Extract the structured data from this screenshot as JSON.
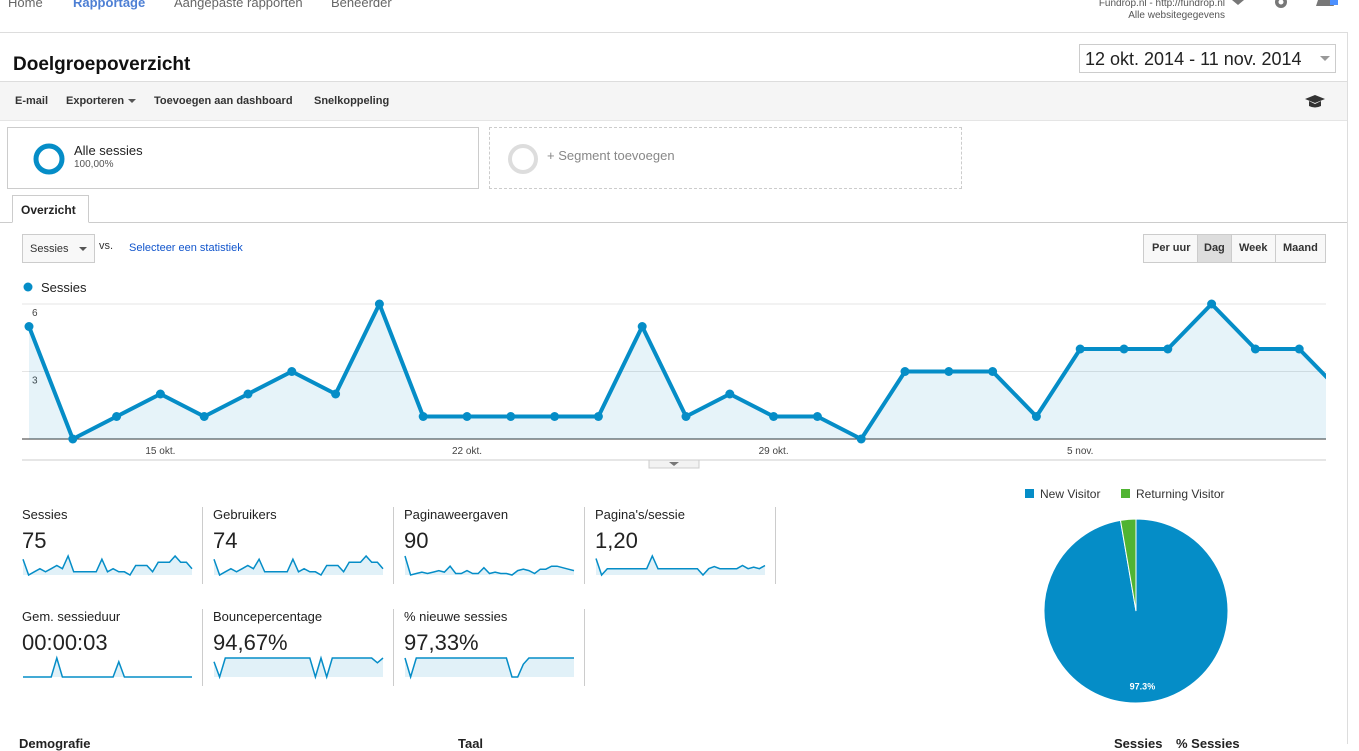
{
  "nav": {
    "tabs": [
      "Home",
      "Rapportage",
      "Aangepaste rapporten",
      "Beheerder"
    ],
    "account": "Fundrop.nl - http://fundrop.nl",
    "view": "Alle websitegegevens"
  },
  "header": {
    "title": "Doelgroepoverzicht",
    "date_range": "12 okt. 2014 - 11 nov. 2014"
  },
  "toolbar": [
    "E-mail",
    "Exporteren",
    "Toevoegen aan dashboard",
    "Snelkoppeling"
  ],
  "segments": {
    "active": {
      "name": "Alle sessies",
      "share": "100,00%"
    },
    "add": "+ Segment toevoegen"
  },
  "tab": "Overzicht",
  "controls": {
    "metric": "Sessies",
    "vs": "vs.",
    "compare": "Selecteer een statistiek",
    "periods": [
      "Per uur",
      "Dag",
      "Week",
      "Maand"
    ]
  },
  "chart_data": [
    {
      "type": "line",
      "categories": [
        null,
        null,
        null,
        "15 okt.",
        null,
        null,
        null,
        null,
        null,
        null,
        "22 okt.",
        null,
        null,
        null,
        null,
        null,
        null,
        "29 okt.",
        null,
        null,
        null,
        null,
        null,
        null,
        "5 nov.",
        null,
        null,
        null,
        null,
        null,
        null
      ],
      "series": [
        {
          "name": "Sessies",
          "color": "#058dc7",
          "values": [
            5,
            0,
            1,
            2,
            1,
            2,
            3,
            2,
            6,
            1,
            1,
            1,
            1,
            1,
            5,
            1,
            2,
            1,
            1,
            0,
            3,
            3,
            3,
            1,
            4,
            4,
            4,
            6,
            4,
            4,
            2
          ]
        }
      ],
      "ylim": [
        0,
        6
      ],
      "yticks": [
        3,
        6
      ],
      "grid": true
    },
    {
      "type": "pie",
      "categories": [
        "New Visitor",
        "Returning Visitor"
      ],
      "values": [
        97.3,
        2.7
      ],
      "value_labels": [
        "97.3%",
        null
      ],
      "colors": [
        "#058dc7",
        "#50b432"
      ],
      "legend": "top"
    }
  ],
  "scorecards": [
    {
      "name": "Sessies",
      "value": "75",
      "sparkline": [
        5,
        0,
        1,
        2,
        1,
        2,
        3,
        2,
        6,
        1,
        1,
        1,
        1,
        1,
        5,
        1,
        2,
        1,
        1,
        0,
        3,
        3,
        3,
        1,
        4,
        4,
        4,
        6,
        4,
        4,
        2
      ]
    },
    {
      "name": "Gebruikers",
      "value": "74",
      "sparkline": [
        5,
        0,
        1,
        2,
        1,
        2,
        3,
        2,
        5,
        1,
        1,
        1,
        1,
        1,
        5,
        1,
        2,
        1,
        1,
        0,
        3,
        3,
        3,
        1,
        4,
        4,
        4,
        6,
        4,
        4,
        2
      ]
    },
    {
      "name": "Paginaweergaven",
      "value": "90",
      "sparkline": [
        13,
        0,
        1,
        2,
        1,
        2,
        3,
        2,
        6,
        1,
        1,
        3,
        1,
        1,
        5,
        1,
        2,
        1,
        1,
        0,
        3,
        4,
        3,
        1,
        4,
        4,
        6,
        6,
        5,
        4,
        3
      ]
    },
    {
      "name": "Pagina's/sessie",
      "value": "1,20",
      "sparkline": [
        2.6,
        0,
        1,
        1,
        1,
        1,
        1,
        1,
        1,
        1,
        3,
        1,
        1,
        1,
        1,
        1,
        1,
        1,
        1,
        0,
        1,
        1.33,
        1,
        1,
        1,
        1,
        1.5,
        1,
        1.25,
        1,
        1.5
      ]
    },
    {
      "name": "Gem. sessieduur",
      "value": "00:00:03",
      "sparkline": [
        0,
        0,
        0,
        0,
        0,
        0,
        10,
        0,
        0,
        0,
        0,
        0,
        0,
        0,
        0,
        0,
        0,
        8,
        0,
        0,
        0,
        0,
        0,
        0,
        0,
        0,
        0,
        0,
        0,
        0,
        0
      ]
    },
    {
      "name": "Bouncepercentage",
      "value": "94,67%",
      "sparkline": [
        80,
        0,
        100,
        100,
        100,
        100,
        100,
        100,
        100,
        100,
        100,
        100,
        100,
        100,
        100,
        100,
        100,
        100,
        0,
        100,
        0,
        100,
        100,
        100,
        100,
        100,
        100,
        100,
        100,
        75,
        100
      ]
    },
    {
      "name": "% nieuwe sessies",
      "value": "97,33%",
      "sparkline": [
        100,
        0,
        100,
        100,
        100,
        100,
        100,
        100,
        100,
        100,
        100,
        100,
        100,
        100,
        100,
        100,
        100,
        100,
        100,
        0,
        0,
        67,
        100,
        100,
        100,
        100,
        100,
        100,
        100,
        100,
        100
      ]
    }
  ],
  "bottom": {
    "columns": [
      "Demografie",
      "Taal",
      "Sessies",
      "% Sessies"
    ]
  }
}
